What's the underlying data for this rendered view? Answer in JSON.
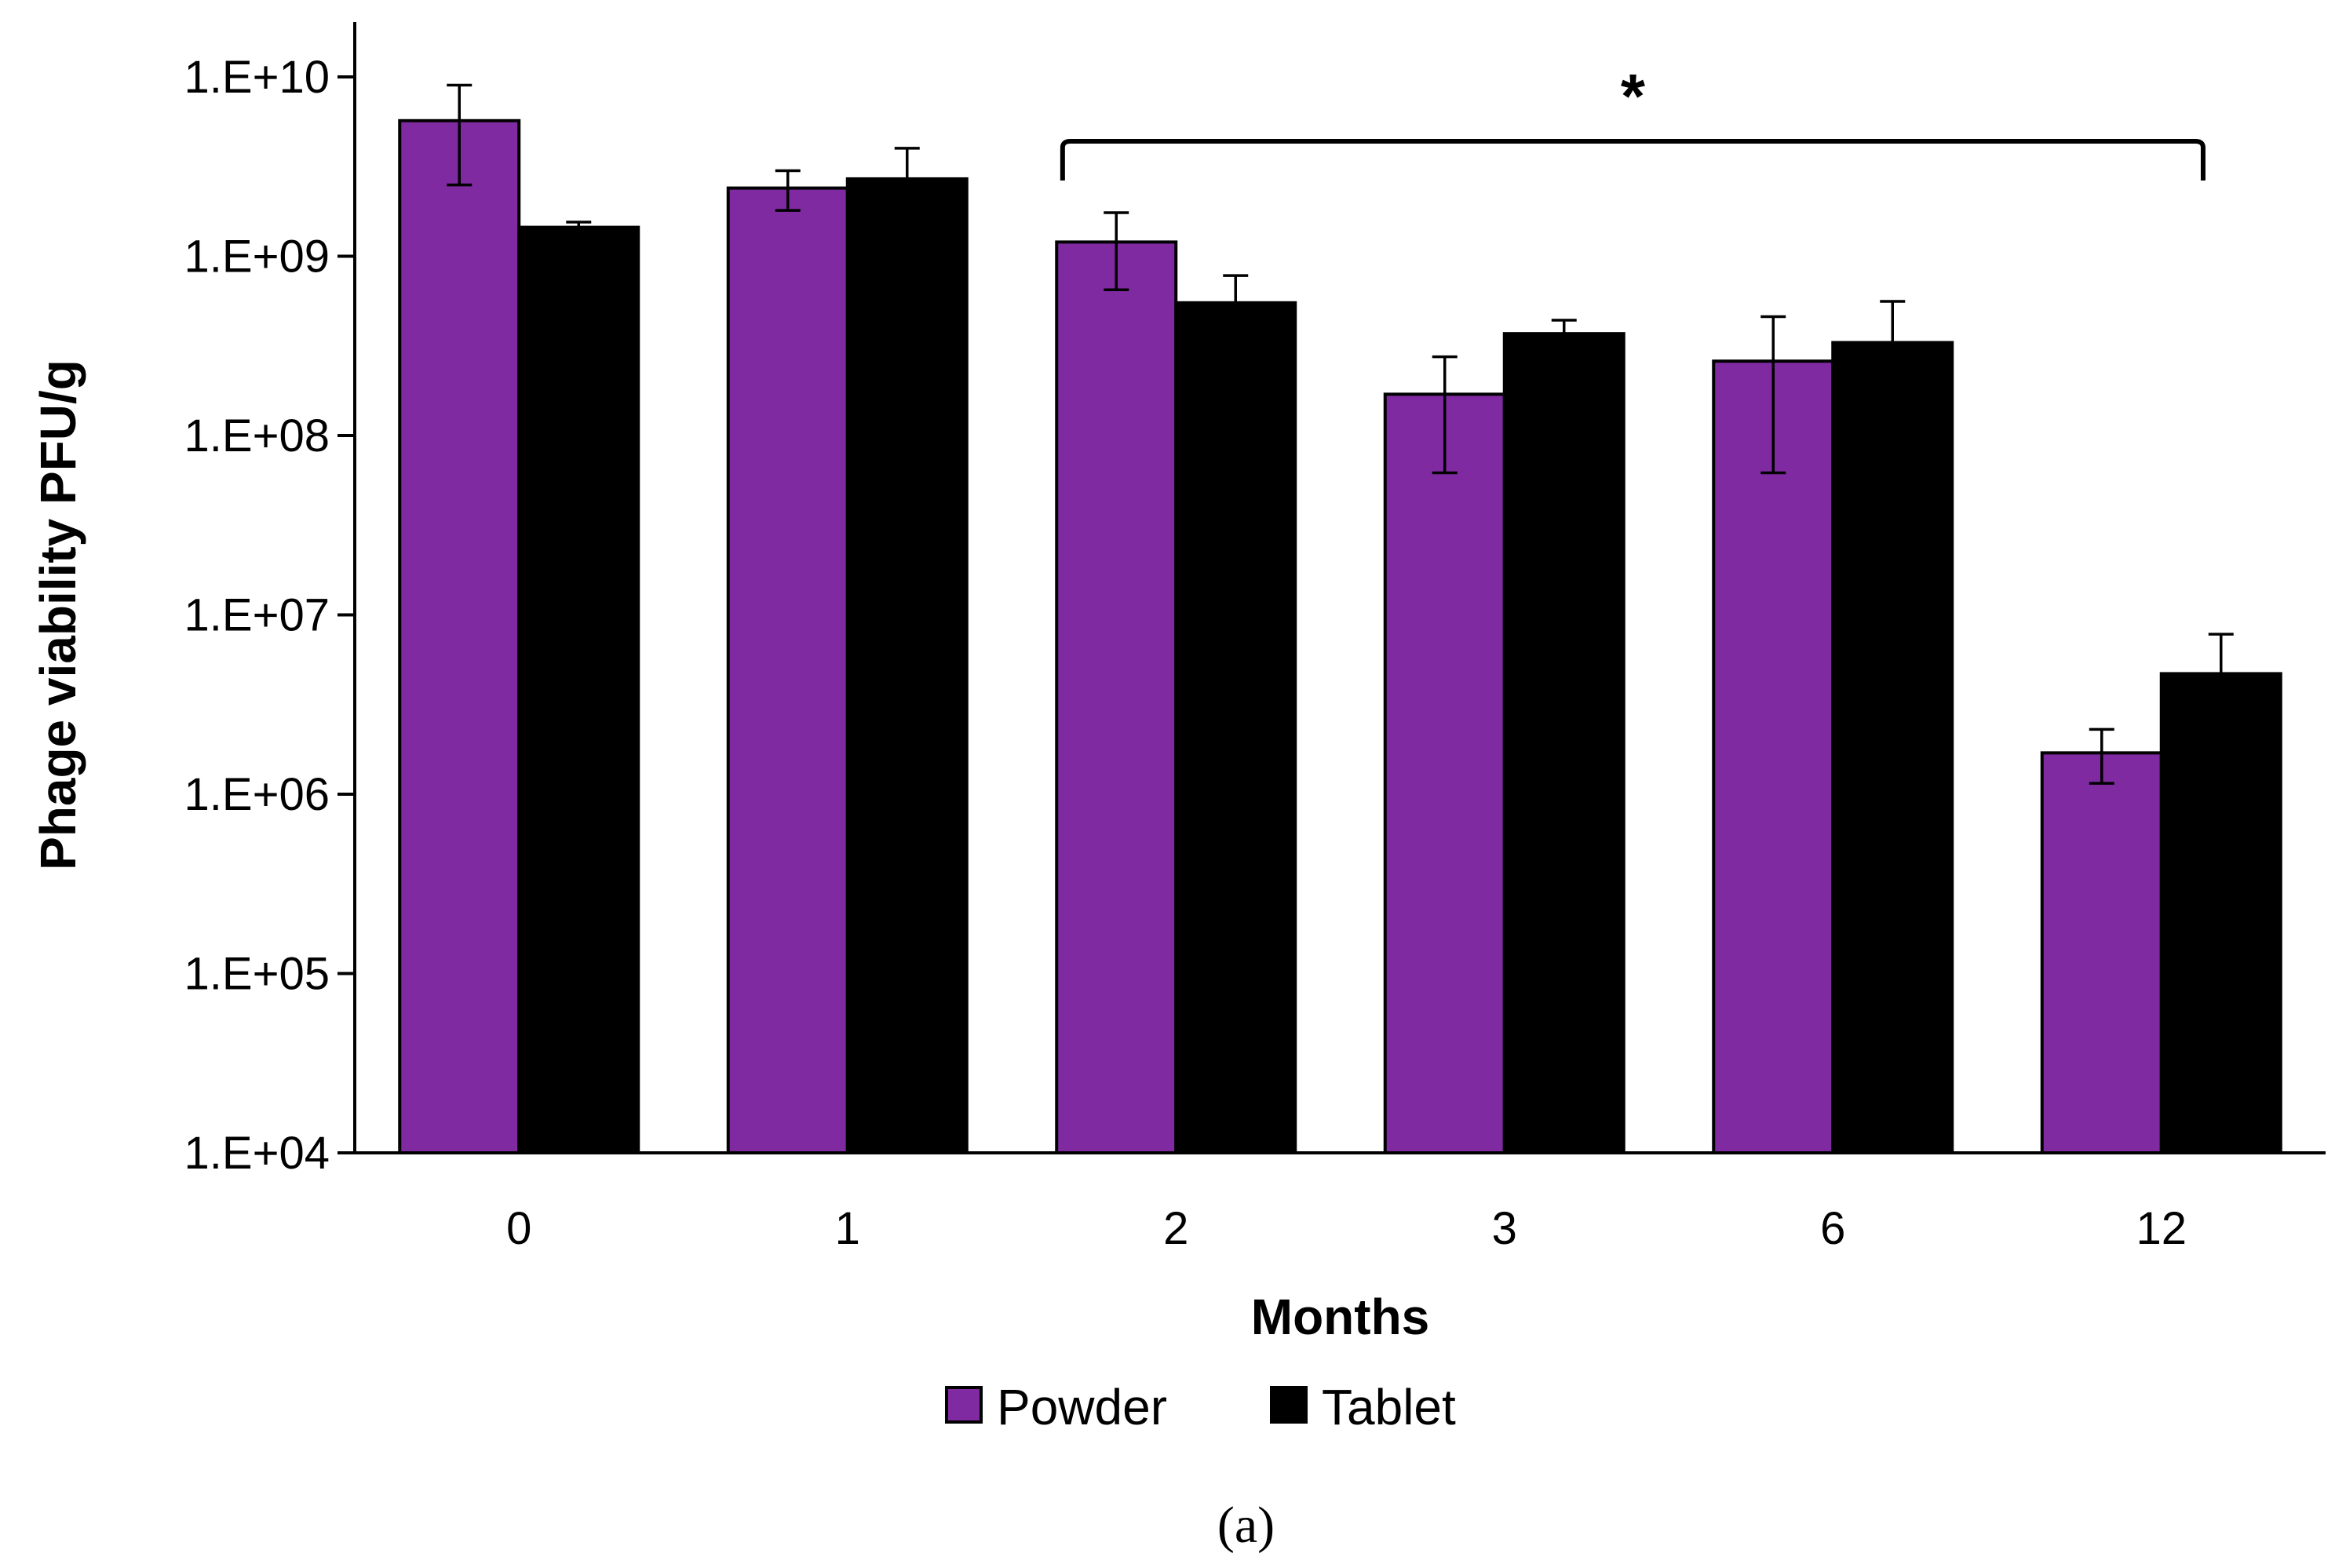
{
  "chart_data": {
    "type": "bar",
    "ylabel": "Phage viability PFU/g",
    "xlabel": "Months",
    "categories": [
      "0",
      "1",
      "2",
      "3",
      "6",
      "12"
    ],
    "y_scale": "log",
    "ylim": [
      10000,
      10000000000
    ],
    "y_ticks": [
      "1.E+04",
      "1.E+05",
      "1.E+06",
      "1.E+07",
      "1.E+08",
      "1.E+09",
      "1.E+10"
    ],
    "legend_position": "bottom",
    "grid": false,
    "series": [
      {
        "name": "Powder",
        "color": "#7f2aa1",
        "values": [
          5700000000,
          2400000000,
          1200000000,
          170000000,
          260000000,
          1700000
        ],
        "error_low": [
          2500000000,
          1800000000,
          650000000,
          62000000,
          62000000,
          1150000
        ],
        "error_high": [
          9000000000,
          3000000000,
          1750000000,
          275000000,
          460000000,
          2300000
        ]
      },
      {
        "name": "Tablet",
        "color": "#000000",
        "values": [
          1450000000,
          2700000000,
          550000000,
          370000000,
          330000000,
          4700000
        ],
        "error_low": [
          1450000000,
          2700000000,
          550000000,
          370000000,
          330000000,
          4700000
        ],
        "error_high": [
          1550000000,
          4000000000,
          780000000,
          440000000,
          560000000,
          7800000
        ]
      }
    ],
    "annotation": {
      "text": "*",
      "from_category": "2",
      "to_category": "12"
    }
  },
  "caption": "(a)"
}
